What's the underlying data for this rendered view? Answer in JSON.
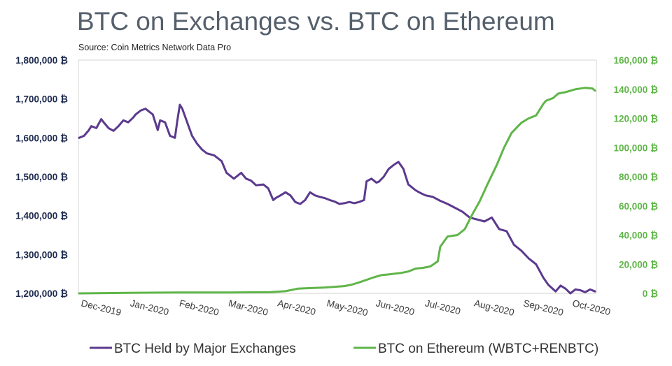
{
  "chart_data": {
    "type": "line",
    "title": "BTC on Exchanges vs. BTC on Ethereum",
    "subtitle": "Source: Coin Metrics Network Data Pro",
    "x_tick_labels": [
      "Dec-2019",
      "Jan-2020",
      "Feb-2020",
      "Mar-2020",
      "Apr-2020",
      "May-2020",
      "Jun-2020",
      "Jul-2020",
      "Aug-2020",
      "Sep-2020",
      "Oct-2020"
    ],
    "left_axis": {
      "ylim": [
        1200000,
        1800000
      ],
      "ticks": [
        1200000,
        1300000,
        1400000,
        1500000,
        1600000,
        1700000,
        1800000
      ],
      "tick_labels": [
        "1,200,000 ₿",
        "1,300,000 ₿",
        "1,400,000 ₿",
        "1,500,000 ₿",
        "1,600,000 ₿",
        "1,700,000 ₿",
        "1,800,000 ₿"
      ]
    },
    "right_axis": {
      "ylim": [
        0,
        160000
      ],
      "ticks": [
        0,
        20000,
        40000,
        60000,
        80000,
        100000,
        120000,
        140000,
        160000
      ],
      "tick_labels": [
        "0 ₿",
        "20,000 ₿",
        "40,000 ₿",
        "60,000 ₿",
        "80,000 ₿",
        "100,000 ₿",
        "120,000 ₿",
        "140,000 ₿",
        "160,000 ₿"
      ]
    },
    "series": [
      {
        "name": "BTC Held by Major Exchanges",
        "axis": "left",
        "color": "#5b3a8e",
        "x": [
          0,
          0.1,
          0.2,
          0.25,
          0.35,
          0.45,
          0.5,
          0.6,
          0.7,
          0.8,
          0.9,
          1.0,
          1.1,
          1.15,
          1.25,
          1.35,
          1.4,
          1.5,
          1.6,
          1.65,
          1.75,
          1.85,
          1.95,
          2.0,
          2.05,
          2.1,
          2.2,
          2.3,
          2.4,
          2.5,
          2.6,
          2.75,
          2.9,
          3.0,
          3.15,
          3.3,
          3.4,
          3.5,
          3.6,
          3.75,
          3.85,
          3.95,
          4.0,
          4.1,
          4.2,
          4.3,
          4.4,
          4.5,
          4.6,
          4.7,
          4.8,
          4.9,
          5.0,
          5.1,
          5.2,
          5.3,
          5.4,
          5.5,
          5.6,
          5.7,
          5.8,
          5.85,
          5.95,
          6.0,
          6.05,
          6.1,
          6.2,
          6.3,
          6.4,
          6.5,
          6.6,
          6.7,
          6.8,
          6.85,
          6.95,
          7.05,
          7.2,
          7.35,
          7.5,
          7.65,
          7.8,
          7.95,
          8.1,
          8.25,
          8.4,
          8.55,
          8.7,
          8.85,
          9.0,
          9.15,
          9.3,
          9.45,
          9.55,
          9.7,
          9.8,
          9.9,
          10.0,
          10.1,
          10.2,
          10.3,
          10.4,
          10.5
        ],
        "values": [
          1600000,
          1605000,
          1620000,
          1630000,
          1625000,
          1648000,
          1640000,
          1625000,
          1618000,
          1630000,
          1645000,
          1640000,
          1652000,
          1660000,
          1670000,
          1675000,
          1670000,
          1660000,
          1620000,
          1645000,
          1640000,
          1605000,
          1600000,
          1645000,
          1685000,
          1675000,
          1640000,
          1605000,
          1585000,
          1570000,
          1560000,
          1555000,
          1540000,
          1510000,
          1495000,
          1510000,
          1495000,
          1490000,
          1478000,
          1480000,
          1470000,
          1440000,
          1445000,
          1452000,
          1460000,
          1452000,
          1435000,
          1430000,
          1440000,
          1460000,
          1452000,
          1448000,
          1445000,
          1440000,
          1436000,
          1430000,
          1432000,
          1435000,
          1432000,
          1435000,
          1440000,
          1488000,
          1495000,
          1490000,
          1485000,
          1487000,
          1500000,
          1520000,
          1530000,
          1538000,
          1520000,
          1480000,
          1470000,
          1465000,
          1458000,
          1452000,
          1448000,
          1438000,
          1430000,
          1420000,
          1410000,
          1395000,
          1390000,
          1385000,
          1395000,
          1365000,
          1360000,
          1325000,
          1310000,
          1290000,
          1275000,
          1240000,
          1222000,
          1205000,
          1220000,
          1212000,
          1200000,
          1210000,
          1208000,
          1203000,
          1210000,
          1205000
        ]
      },
      {
        "name": "BTC on Ethereum (WBTC+RENBTC)",
        "axis": "right",
        "color": "#5fb548",
        "x": [
          0,
          1,
          2,
          3,
          3.9,
          4.2,
          4.45,
          4.6,
          5.0,
          5.4,
          5.55,
          5.7,
          6.0,
          6.15,
          6.3,
          6.55,
          6.7,
          6.85,
          7.0,
          7.15,
          7.3,
          7.35,
          7.5,
          7.7,
          7.85,
          8.0,
          8.15,
          8.3,
          8.5,
          8.65,
          8.8,
          9.0,
          9.15,
          9.3,
          9.45,
          9.5,
          9.65,
          9.75,
          9.9,
          10.1,
          10.3,
          10.45,
          10.5
        ],
        "values": [
          0,
          400,
          600,
          600,
          800,
          1500,
          3200,
          3500,
          4000,
          5000,
          6000,
          7500,
          11000,
          12500,
          13000,
          14000,
          15000,
          17000,
          17500,
          18500,
          22000,
          32000,
          39000,
          40000,
          44000,
          54000,
          63000,
          74000,
          88000,
          100000,
          110000,
          117000,
          120000,
          122000,
          130000,
          132000,
          134000,
          137000,
          138000,
          140000,
          141000,
          140500,
          139000
        ]
      }
    ]
  }
}
